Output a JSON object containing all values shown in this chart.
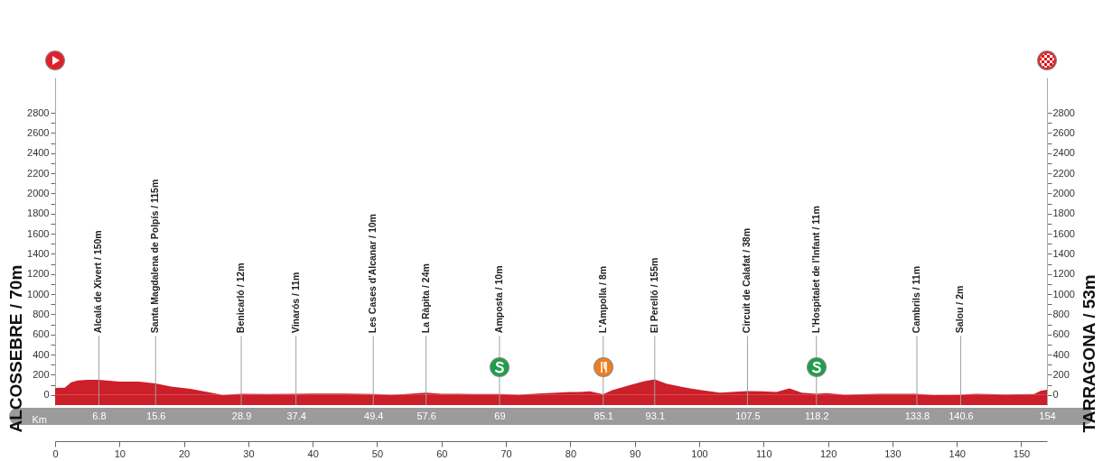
{
  "chart_data": {
    "type": "area",
    "ylabel": "ALCOSSEBRE / 70m",
    "y2label": "TARRAGONA / 53m",
    "x2label": "Km",
    "x": [
      0,
      1.5,
      2.5,
      3.5,
      5,
      6.8,
      10,
      13,
      15.6,
      18,
      21,
      24,
      26,
      28.9,
      33,
      37.4,
      40,
      45,
      49.4,
      52,
      54,
      57.6,
      60,
      65,
      69,
      72,
      75,
      80,
      81.5,
      83,
      85.1,
      86.5,
      89.3,
      91.5,
      93.1,
      94.9,
      97.6,
      100.4,
      103.2,
      107.5,
      109.8,
      112,
      114,
      115.9,
      118.2,
      119.8,
      122.6,
      128,
      133.8,
      136.4,
      140.6,
      143,
      147.5,
      152,
      153,
      154
    ],
    "series": [
      {
        "color": "#cc1f2a",
        "values": [
          70,
          72,
          126,
          144,
          150,
          150,
          133,
          133,
          115,
          83,
          61,
          25,
          0,
          12,
          10,
          11,
          15,
          15,
          10,
          2,
          8,
          24,
          12,
          10,
          10,
          2,
          15,
          30,
          30,
          36,
          8,
          47,
          100,
          138,
          155,
          113,
          76,
          47,
          22,
          38,
          36,
          29,
          65,
          22,
          11,
          18,
          2,
          11,
          11,
          0,
          2,
          11,
          5,
          10,
          40,
          53
        ]
      }
    ],
    "xlim": [
      0,
      154
    ],
    "xticks": [
      0,
      10,
      20,
      30,
      40,
      50,
      60,
      70,
      80,
      90,
      100,
      110,
      120,
      130,
      140,
      150
    ],
    "x2lim": [
      0,
      154
    ],
    "x2ticks": [
      6.8,
      15.6,
      28.9,
      37.4,
      49.4,
      57.6,
      69,
      85.1,
      93.1,
      107.5,
      118.2,
      133.8,
      140.6,
      154
    ],
    "bands": [
      {
        "axis": "y",
        "from": -100,
        "to": 0,
        "color": "#cc1f2a"
      }
    ],
    "ylim": [
      -100,
      3150
    ],
    "yticks": [
      0,
      {
        "value": 100,
        "label": null
      },
      200,
      {
        "value": 300,
        "label": null
      },
      400,
      {
        "value": 500,
        "label": null
      },
      600,
      {
        "value": 700,
        "label": null
      },
      800,
      {
        "value": 900,
        "label": null
      },
      1000,
      {
        "value": 1100,
        "label": null
      },
      1200,
      {
        "value": 1300,
        "label": null
      },
      1400,
      {
        "value": 1500,
        "label": null
      },
      1600,
      {
        "value": 1700,
        "label": null
      },
      1800,
      {
        "value": 1900,
        "label": null
      },
      2000,
      {
        "value": 2100,
        "label": null
      },
      2200,
      {
        "value": 2300,
        "label": null
      },
      2400,
      {
        "value": 2500,
        "label": null
      },
      2600,
      {
        "value": 2700,
        "label": null
      },
      2800
    ],
    "y2lim": [
      -100,
      3150
    ],
    "y2ticks": [
      0,
      {
        "value": 100,
        "label": null
      },
      200,
      {
        "value": 300,
        "label": null
      },
      400,
      {
        "value": 500,
        "label": null
      },
      600,
      {
        "value": 700,
        "label": null
      },
      800,
      {
        "value": 900,
        "label": null
      },
      1000,
      {
        "value": 1100,
        "label": null
      },
      1200,
      {
        "value": 1300,
        "label": null
      },
      1400,
      {
        "value": 1500,
        "label": null
      },
      1600,
      {
        "value": 1700,
        "label": null
      },
      1800,
      {
        "value": 1900,
        "label": null
      },
      2000,
      {
        "value": 2100,
        "label": null
      },
      2200,
      {
        "value": 2300,
        "label": null
      },
      2400,
      {
        "value": 2500,
        "label": null
      },
      2600,
      {
        "value": 2700,
        "label": null
      },
      2800
    ],
    "annotations": [
      {
        "text": "Alcalá de Xivert / 150m",
        "x": 6.8
      },
      {
        "text": "Santa Magdalena de Polpís / 115m",
        "x": 15.6
      },
      {
        "text": "Benicarló / 12m",
        "x": 28.9
      },
      {
        "text": "Vinarós / 11m",
        "x": 37.4
      },
      {
        "text": "Les Cases d'Alcanar / 10m",
        "x": 49.4
      },
      {
        "text": "La Ràpita / 24m",
        "x": 57.6
      },
      {
        "text": "Amposta / 10m",
        "x": 69
      },
      {
        "text": "L'Ampolla / 8m",
        "x": 85.1
      },
      {
        "text": "El Perelló / 155m",
        "x": 93.1
      },
      {
        "text": "Circuit de Calafat / 38m",
        "x": 107.5
      },
      {
        "text": "L'Hospitalet de l'Infant / 11m",
        "x": 118.2
      },
      {
        "text": "Cambrils / 11m",
        "x": 133.8
      },
      {
        "text": "Salou / 2m",
        "x": 140.6
      }
    ]
  }
}
